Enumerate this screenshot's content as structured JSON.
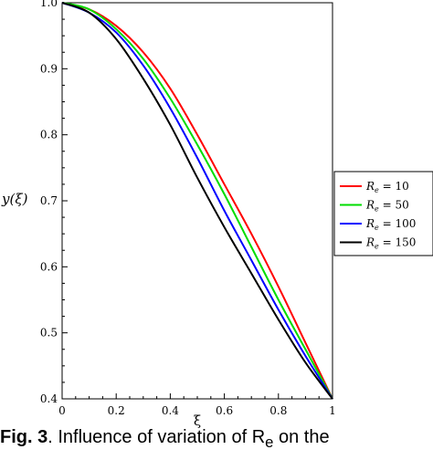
{
  "chart_data": {
    "type": "line",
    "title": "",
    "xlabel": "ξ",
    "ylabel": "y(ξ)",
    "xlim": [
      0,
      1
    ],
    "ylim": [
      0.4,
      1.0
    ],
    "xticks": [
      "0",
      "0.2",
      "0.4",
      "0.6",
      "0.8",
      "1"
    ],
    "yticks": [
      "0.4",
      "0.5",
      "0.6",
      "0.7",
      "0.8",
      "0.9",
      "1.0"
    ],
    "grid": false,
    "legend_position": "right",
    "series": [
      {
        "name": "Re = 10",
        "label_main": "R",
        "label_sub": "e",
        "label_value": " = 10",
        "color": "#ff0000",
        "x": [
          0,
          0.1,
          0.2,
          0.3,
          0.4,
          0.5,
          0.6,
          0.7,
          0.8,
          0.9,
          1.0
        ],
        "y": [
          1.0,
          0.99,
          0.965,
          0.925,
          0.87,
          0.8,
          0.725,
          0.65,
          0.57,
          0.485,
          0.4
        ]
      },
      {
        "name": "Re = 50",
        "label_main": "R",
        "label_sub": "e",
        "label_value": " = 50",
        "color": "#00dd00",
        "x": [
          0,
          0.1,
          0.2,
          0.3,
          0.4,
          0.5,
          0.6,
          0.7,
          0.8,
          0.9,
          1.0
        ],
        "y": [
          1.0,
          0.99,
          0.96,
          0.915,
          0.855,
          0.785,
          0.71,
          0.63,
          0.55,
          0.475,
          0.4
        ]
      },
      {
        "name": "Re = 100",
        "label_main": "R",
        "label_sub": "e",
        "label_value": " = 100",
        "color": "#0000ff",
        "x": [
          0,
          0.1,
          0.2,
          0.3,
          0.4,
          0.5,
          0.6,
          0.7,
          0.8,
          0.9,
          1.0
        ],
        "y": [
          1.0,
          0.985,
          0.955,
          0.905,
          0.84,
          0.765,
          0.685,
          0.61,
          0.535,
          0.465,
          0.4
        ]
      },
      {
        "name": "Re = 150",
        "label_main": "R",
        "label_sub": "e",
        "label_value": " = 150",
        "color": "#000000",
        "x": [
          0,
          0.1,
          0.2,
          0.3,
          0.4,
          0.5,
          0.6,
          0.7,
          0.8,
          0.9,
          1.0
        ],
        "y": [
          1.0,
          0.985,
          0.945,
          0.885,
          0.815,
          0.735,
          0.66,
          0.59,
          0.52,
          0.455,
          0.4
        ]
      }
    ]
  },
  "caption": {
    "fig_label": "Fig. 3",
    "text": ". Influence of variation of R",
    "sub": "e",
    "tail": " on the"
  }
}
